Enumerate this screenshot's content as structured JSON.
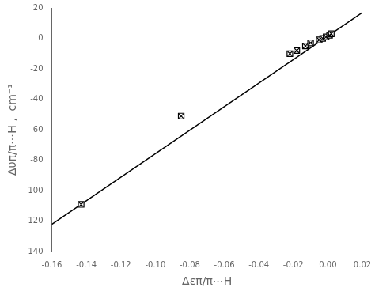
{
  "chart_data": {
    "type": "scatter",
    "xlabel": "Δεπ/π⋯H",
    "ylabel": "Δυπ/π⋯H ,  cm⁻¹",
    "series": [
      {
        "type": "line",
        "color": "#000000",
        "line_style": "solid",
        "x": [
          -0.16,
          0.02
        ],
        "values": [
          -122,
          17
        ]
      },
      {
        "type": "scatter",
        "color": "#000000",
        "marker": "square_x",
        "x": [
          -0.143,
          -0.085,
          -0.022,
          -0.018,
          -0.013,
          -0.01,
          -0.005,
          -0.003,
          -0.001,
          0.001,
          0.002
        ],
        "values": [
          -109,
          -51,
          -10,
          -8,
          -5,
          -3,
          -1,
          0,
          1,
          2,
          3
        ]
      }
    ],
    "xlim": [
      -0.16,
      0.02
    ],
    "ylim": [
      -140,
      20
    ],
    "xticks": [
      -0.16,
      -0.14,
      -0.12,
      {
        "value": -0.1,
        "label": "-0.10"
      },
      -0.08,
      -0.06,
      -0.04,
      -0.02,
      {
        "value": 0.0,
        "label": "0.00"
      },
      0.02
    ],
    "yticks": [
      -140,
      -120,
      -100,
      -80,
      -60,
      -40,
      -20,
      0,
      20
    ],
    "grid": false
  }
}
